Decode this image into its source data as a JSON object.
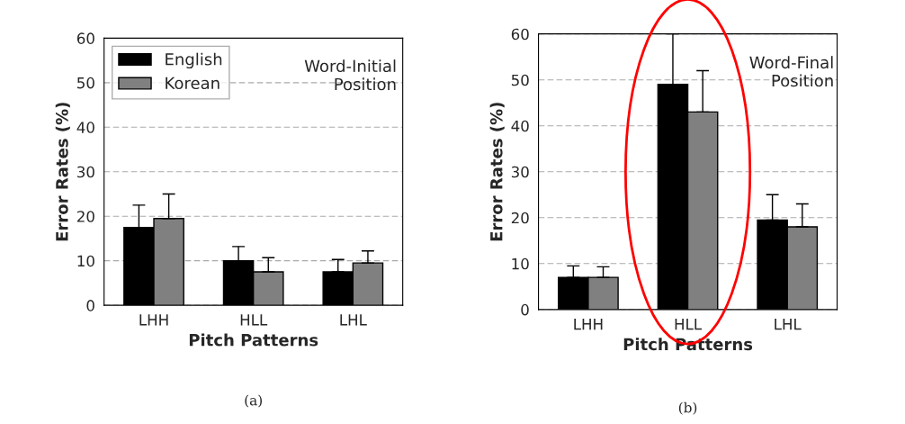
{
  "chart_data": [
    {
      "type": "bar",
      "categories": [
        "LHH",
        "HLL",
        "LHL"
      ],
      "xlabel": "Pitch Patterns",
      "ylabel": "Error Rates (%)",
      "ylim": [
        0,
        60
      ],
      "yticks": [
        0,
        10,
        20,
        30,
        40,
        50,
        60
      ],
      "grid": "y",
      "legend": "top left",
      "annotations": [
        "Word-Initial\nPosition",
        "(a)"
      ],
      "series": [
        {
          "name": "English",
          "color": "#000000",
          "values": [
            17.5,
            10,
            7.5
          ],
          "errors": [
            [
              17.5,
              22.5
            ],
            [
              10,
              13.2
            ],
            [
              7.5,
              10.3
            ]
          ]
        },
        {
          "name": "Korean",
          "color": "#808080",
          "values": [
            19.5,
            7.5,
            9.5
          ],
          "errors": [
            [
              19.5,
              25
            ],
            [
              7.5,
              10.7
            ],
            [
              9.5,
              12.2
            ]
          ]
        }
      ]
    },
    {
      "type": "bar",
      "categories": [
        "LHH",
        "HLL",
        "LHL"
      ],
      "xlabel": "Pitch Patterns",
      "ylabel": "Error Rates (%)",
      "ylim": [
        0,
        60
      ],
      "yticks": [
        0,
        10,
        20,
        30,
        40,
        50,
        60
      ],
      "grid": "y",
      "annotations": [
        "Word-Final\nPosition",
        "(b)"
      ],
      "series": [
        {
          "color": "#000000",
          "values": [
            7,
            49,
            19.5
          ],
          "errors": [
            [
              7,
              9.5
            ],
            [
              49,
              60
            ],
            [
              19.5,
              25
            ]
          ]
        },
        {
          "color": "#808080",
          "values": [
            7,
            43,
            18
          ],
          "errors": [
            [
              7,
              9.3
            ],
            [
              43,
              52
            ],
            [
              18,
              23
            ]
          ]
        }
      ]
    }
  ]
}
